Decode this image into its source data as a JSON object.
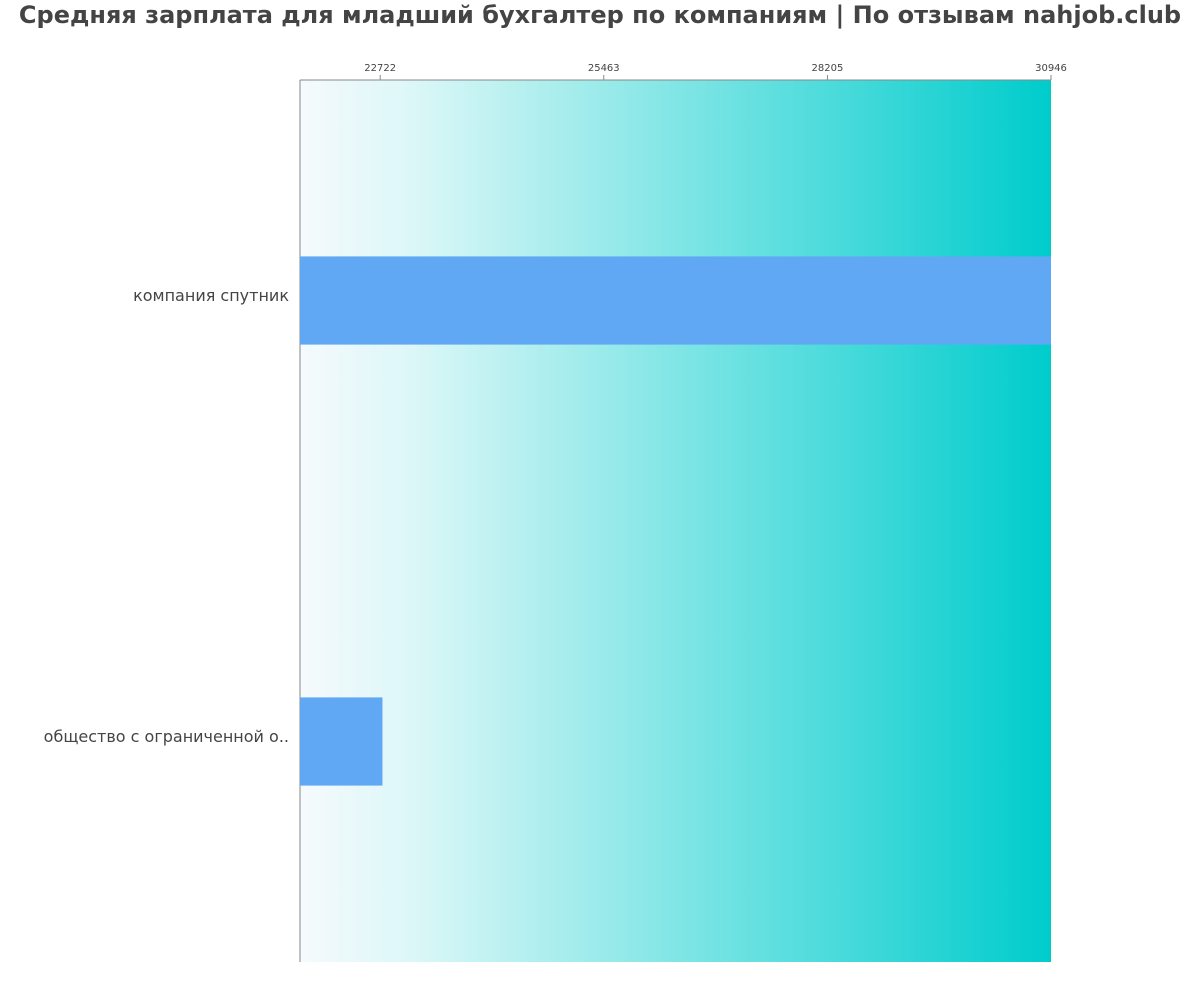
{
  "chart_data": {
    "type": "barh",
    "title": "Средняя зарплата для младший бухгалтер по компаниям  | По отзывам nahjob.club",
    "categories": [
      "компания спутник",
      "общество с ограниченной о.."
    ],
    "values": [
      30946,
      22750
    ],
    "color": "#61a8f4",
    "xlim": [
      21739,
      30946
    ],
    "xticks": [
      22722,
      25463,
      28205,
      30946
    ]
  }
}
